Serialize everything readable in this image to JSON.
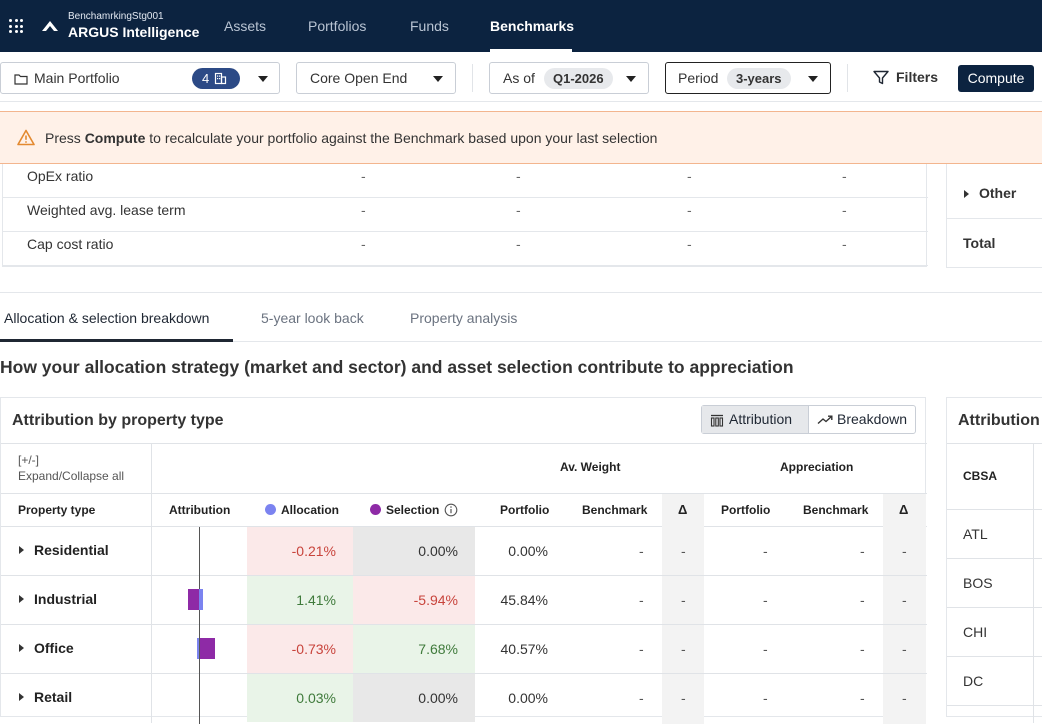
{
  "nav": {
    "org": "BenchamrkingStg001",
    "brand": "ARGUS Intelligence",
    "tabs": [
      "Assets",
      "Portfolios",
      "Funds",
      "Benchmarks"
    ],
    "active_tab": "Benchmarks"
  },
  "toolbar": {
    "portfolio_label": "Main Portfolio",
    "portfolio_count": "4",
    "strategy": "Core Open End",
    "asof_label": "As of",
    "asof_value": "Q1-2026",
    "period_label": "Period",
    "period_value": "3-years",
    "filters_label": "Filters",
    "compute_label": "Compute"
  },
  "banner": {
    "prefix": "Press ",
    "bold": "Compute",
    "suffix": " to recalculate your portfolio against the Benchmark based upon your last selection"
  },
  "upper_table": {
    "rows": [
      {
        "name": "OpEx ratio",
        "values": [
          "-",
          "-",
          "-",
          "-"
        ]
      },
      {
        "name": "Weighted avg. lease term",
        "values": [
          "-",
          "-",
          "-",
          "-"
        ]
      },
      {
        "name": "Cap cost ratio",
        "values": [
          "-",
          "-",
          "-",
          "-"
        ]
      }
    ]
  },
  "right_card": {
    "other_label": "Other",
    "total_label": "Total"
  },
  "subtabs": {
    "items": [
      "Allocation & selection breakdown",
      "5-year look back",
      "Property analysis"
    ],
    "active": "Allocation & selection breakdown"
  },
  "headline": "How your allocation strategy (market and sector) and asset selection contribute to appreciation",
  "attribution": {
    "title": "Attribution by property type",
    "toggle_attribution": "Attribution",
    "toggle_breakdown": "Breakdown",
    "expand_top": "[+/-]",
    "expand_bottom": "Expand/Collapse all",
    "group_weight": "Av. Weight",
    "group_appreciation": "Appreciation",
    "columns": {
      "property_type": "Property type",
      "attribution": "Attribution",
      "allocation": "Allocation",
      "selection": "Selection",
      "portfolio": "Portfolio",
      "benchmark": "Benchmark",
      "delta": "Δ",
      "app_portfolio": "Portfolio",
      "app_benchmark": "Benchmark",
      "app_delta": "Δ"
    },
    "colors": {
      "allocation": "#7b83f0",
      "selection": "#8e2aa6"
    },
    "rows": [
      {
        "name": "Residential",
        "allocation": "-0.21%",
        "selection": "0.00%",
        "weight_portfolio": "0.00%",
        "weight_benchmark": "-",
        "weight_delta": "-",
        "app_portfolio": "-",
        "app_benchmark": "-",
        "app_delta": "-"
      },
      {
        "name": "Industrial",
        "allocation": "1.41%",
        "selection": "-5.94%",
        "weight_portfolio": "45.84%",
        "weight_benchmark": "-",
        "weight_delta": "-",
        "app_portfolio": "-",
        "app_benchmark": "-",
        "app_delta": "-"
      },
      {
        "name": "Office",
        "allocation": "-0.73%",
        "selection": "7.68%",
        "weight_portfolio": "40.57%",
        "weight_benchmark": "-",
        "weight_delta": "-",
        "app_portfolio": "-",
        "app_benchmark": "-",
        "app_delta": "-"
      },
      {
        "name": "Retail",
        "allocation": "0.03%",
        "selection": "0.00%",
        "weight_portfolio": "0.00%",
        "weight_benchmark": "-",
        "weight_delta": "-",
        "app_portfolio": "-",
        "app_benchmark": "-",
        "app_delta": "-"
      }
    ]
  },
  "side_panel": {
    "title": "Attribution",
    "column": "CBSA",
    "rows": [
      "ATL",
      "BOS",
      "CHI",
      "DC"
    ]
  }
}
